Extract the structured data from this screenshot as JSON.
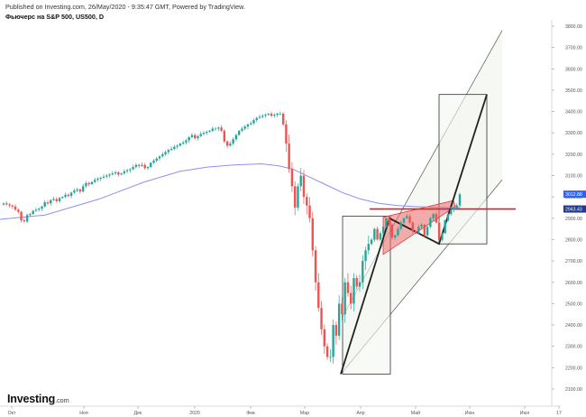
{
  "header": {
    "published": "Published on Investing.com, 26/May/2020 - 9:35:47 GMT, Powered by TradingView.",
    "title": "Фьючерс на S&P 500, US500, D"
  },
  "brand": {
    "logo": "Investing",
    "suffix": ".com"
  },
  "colors": {
    "up": "#26a69a",
    "down": "#ef5350",
    "ma": "#8f8ff2",
    "channel_fill": "#eef3ea",
    "wedge_fill": "#ef6c6c",
    "support": "#e51c23",
    "label_blue": "#2962ff",
    "label_dark": "#1e3a8a"
  },
  "chart_data": {
    "type": "candlestick",
    "x_ticks": [
      "Окт",
      "Ноя",
      "Дек",
      "2020",
      "Фев",
      "Мар",
      "Апр",
      "Май",
      "Июн",
      "Июл",
      "17"
    ],
    "y_ticks": [
      "3800.00",
      "3700.00",
      "3600.00",
      "3500.00",
      "3400.00",
      "3300.00",
      "3200.00",
      "3100.00",
      "3000.00",
      "2900.00",
      "2800.00",
      "2700.00",
      "2600.00",
      "2500.00",
      "2400.00",
      "2300.00",
      "2200.00",
      "2100.00"
    ],
    "ylim": [
      2060,
      3850
    ],
    "price_labels": {
      "current": "3012.88",
      "level": "2943.43"
    },
    "support_level": 2943.43,
    "closes": [
      2970,
      2965,
      2960,
      2955,
      2940,
      2930,
      2890,
      2885,
      2915,
      2920,
      2935,
      2940,
      2945,
      2955,
      2975,
      2970,
      2985,
      2990,
      2980,
      2995,
      3000,
      3010,
      3005,
      3020,
      3030,
      3035,
      3025,
      3050,
      3065,
      3060,
      3070,
      3080,
      3085,
      3090,
      3095,
      3100,
      3105,
      3110,
      3115,
      3105,
      3110,
      3120,
      3125,
      3130,
      3140,
      3150,
      3145,
      3150,
      3135,
      3140,
      3160,
      3170,
      3180,
      3190,
      3200,
      3210,
      3220,
      3225,
      3235,
      3240,
      3250,
      3255,
      3265,
      3280,
      3290,
      3275,
      3285,
      3295,
      3300,
      3305,
      3310,
      3320,
      3320,
      3325,
      3310,
      3260,
      3240,
      3250,
      3270,
      3290,
      3310,
      3320,
      3330,
      3340,
      3345,
      3360,
      3370,
      3375,
      3380,
      3385,
      3390,
      3380,
      3385,
      3390,
      3390,
      3340,
      3250,
      3130,
      3050,
      2950,
      3050,
      3100,
      3000,
      2960,
      2900,
      2750,
      2600,
      2480,
      2380,
      2300,
      2250,
      2250,
      2400,
      2350,
      2500,
      2450,
      2600,
      2550,
      2500,
      2620,
      2580,
      2600,
      2700,
      2750,
      2780,
      2800,
      2850,
      2800,
      2830,
      2860,
      2900,
      2870,
      2810,
      2820,
      2850,
      2880,
      2900,
      2910,
      2880,
      2840,
      2830,
      2860,
      2870,
      2820,
      2860,
      2900,
      2920,
      2880,
      2800,
      2830,
      2890,
      2920,
      2940,
      2950,
      2960,
      3012
    ],
    "ma_points": [
      [
        0,
        2895
      ],
      [
        50,
        2915
      ],
      [
        110,
        2990
      ],
      [
        160,
        3070
      ],
      [
        200,
        3120
      ],
      [
        230,
        3140
      ],
      [
        260,
        3150
      ],
      [
        290,
        3155
      ],
      [
        310,
        3145
      ],
      [
        325,
        3130
      ],
      [
        340,
        3100
      ],
      [
        360,
        3060
      ],
      [
        380,
        3020
      ],
      [
        400,
        2990
      ],
      [
        420,
        2970
      ],
      [
        440,
        2960
      ],
      [
        460,
        2955
      ],
      [
        480,
        2952
      ],
      [
        500,
        2950
      ],
      [
        510,
        2950
      ]
    ],
    "annotations": {
      "box1": {
        "x1": 380,
        "x2": 433,
        "y1": 2910,
        "y2": 2170
      },
      "box2": {
        "x1": 487,
        "x2": 540,
        "y1": 3480,
        "y2": 2780
      },
      "channel_lines": [
        {
          "x1": 380,
          "x2": 557,
          "y1": 2440,
          "y2": 3780
        },
        {
          "x1": 378,
          "x2": 557,
          "y1": 2170,
          "y2": 3080
        }
      ],
      "wedge": [
        [
          425,
          2905
        ],
        [
          503,
          2983
        ],
        [
          505,
          2955
        ],
        [
          425,
          2730
        ]
      ],
      "zigzag": [
        [
          378,
          2170
        ],
        [
          432,
          2900
        ],
        [
          487,
          2780
        ],
        [
          540,
          3480
        ]
      ],
      "hline": {
        "x1": 410,
        "x2": 572
      }
    }
  }
}
